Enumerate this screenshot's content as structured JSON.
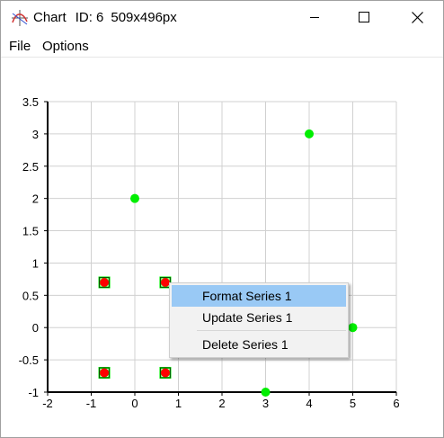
{
  "window": {
    "title": "Chart",
    "id_text": "ID: 6",
    "size_text": "509x496px",
    "icon": "chart-app-icon"
  },
  "menu": [
    "File",
    "Options"
  ],
  "context_menu": {
    "items": [
      "Format Series 1",
      "Update Series 1",
      "Delete Series 1"
    ],
    "highlighted_index": 0
  },
  "colors": {
    "series1": "#00ee00",
    "series2": "#ff0000",
    "highlight": "#99c9f5",
    "grid": "#d0d0d0"
  },
  "chart_data": {
    "type": "scatter",
    "xlim": [
      -2,
      6
    ],
    "ylim": [
      -1,
      3.5
    ],
    "xticks": [
      "-2",
      "-1",
      "0",
      "1",
      "2",
      "3",
      "4",
      "5",
      "6"
    ],
    "yticks": [
      "3.5",
      "3",
      "2.5",
      "2",
      "1.5",
      "1",
      "0.5",
      "0",
      "-0.5",
      "-1"
    ],
    "grid": true,
    "series": [
      {
        "name": "Series 1",
        "marker": "green-circle",
        "color": "#00ee00",
        "points": [
          [
            0,
            2
          ],
          [
            4,
            3
          ],
          [
            5,
            0
          ],
          [
            3,
            -1
          ],
          [
            -0.7,
            0.7
          ],
          [
            0.7,
            0.7
          ],
          [
            -0.7,
            -0.7
          ],
          [
            0.7,
            -0.7
          ]
        ]
      },
      {
        "marker": "red-circle-selected",
        "color": "#ff0000",
        "points": [
          [
            -0.7,
            0.7
          ],
          [
            0.7,
            0.7
          ],
          [
            -0.7,
            -0.7
          ],
          [
            0.7,
            -0.7
          ]
        ]
      }
    ]
  }
}
